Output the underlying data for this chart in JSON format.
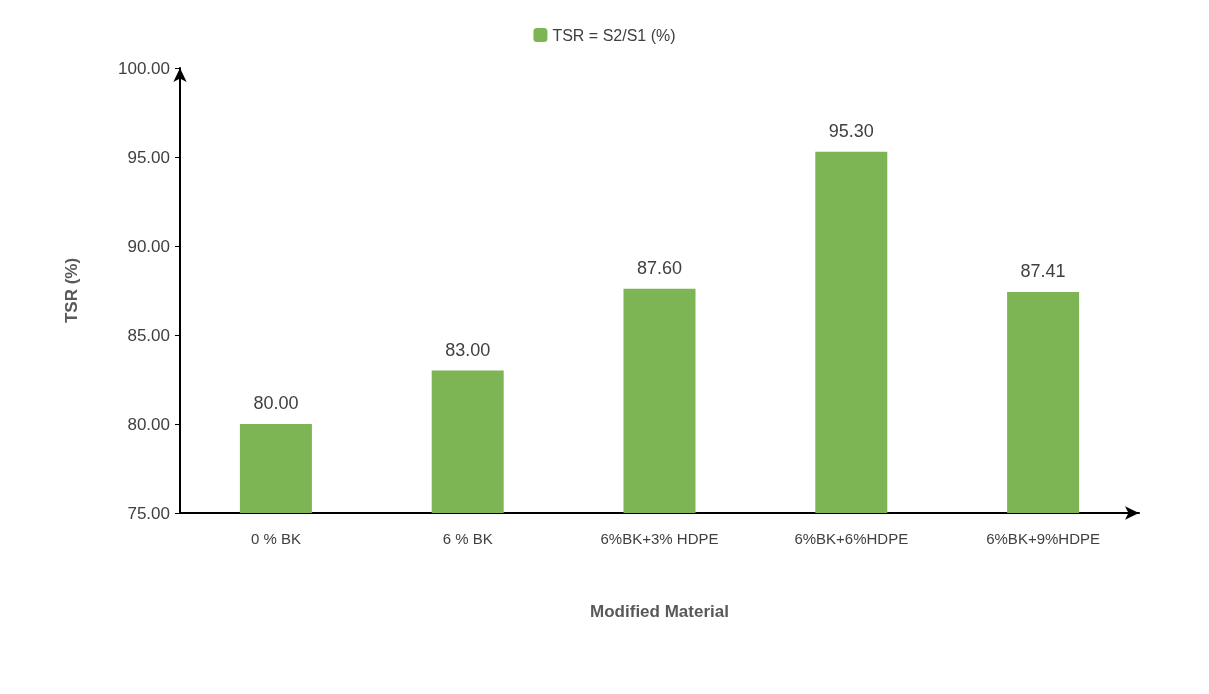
{
  "chart_data": {
    "type": "bar",
    "xlabel": "Modified Material",
    "ylabel": "TSR (%)",
    "categories": [
      "0 % BK",
      "6 % BK",
      "6%BK+3% HDPE",
      "6%BK+6%HDPE",
      "6%BK+9%HDPE"
    ],
    "series": [
      {
        "name": "TSR = S2/S1 (%)",
        "color": "#7db454",
        "values": [
          80.0,
          83.0,
          87.6,
          95.3,
          87.41
        ],
        "value_labels": [
          "80.00",
          "83.00",
          "87.60",
          "95.30",
          "87.41"
        ]
      }
    ],
    "ylim": [
      75,
      100
    ],
    "yticks": [
      {
        "value": 75,
        "label": "75.00"
      },
      {
        "value": 80,
        "label": "80.00"
      },
      {
        "value": 85,
        "label": "85.00"
      },
      {
        "value": 90,
        "label": "90.00"
      },
      {
        "value": 95,
        "label": "95.00"
      },
      {
        "value": 100,
        "label": "100.00"
      }
    ],
    "grid": false,
    "legend": "top"
  }
}
